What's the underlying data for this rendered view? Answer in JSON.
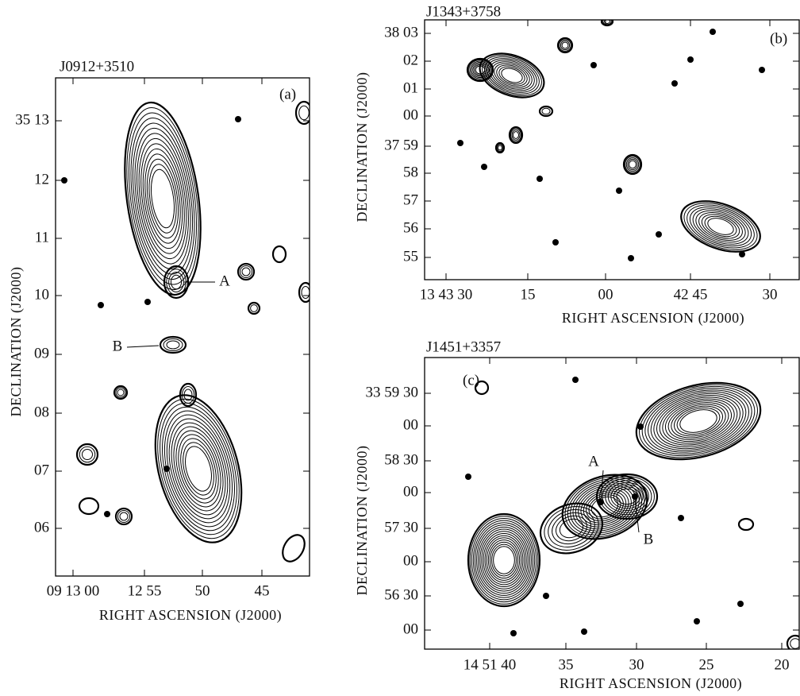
{
  "panels": [
    {
      "title": "J0912+3510",
      "label": "(a)",
      "y_tick_labels": [
        "35 13",
        "12",
        "11",
        "10",
        "09",
        "08",
        "07",
        "06"
      ],
      "x_tick_labels": [
        "09 13 00",
        "12 55",
        "50",
        "45"
      ],
      "x_axis_label": "RIGHT ASCENSION (J2000)",
      "y_axis_label": "DECLINATION (J2000)",
      "annotations": [
        "A",
        "B"
      ]
    },
    {
      "title": "J1343+3758",
      "label": "(b)",
      "y_tick_labels": [
        "38 03",
        "02",
        "01",
        "00",
        "37 59",
        "58",
        "57",
        "56",
        "55"
      ],
      "x_tick_labels": [
        "13 43 30",
        "15",
        "00",
        "42 45",
        "30"
      ],
      "x_axis_label": "RIGHT ASCENSION (J2000)",
      "y_axis_label": "DECLINATION (J2000)",
      "annotations": []
    },
    {
      "title": "J1451+3357",
      "label": "(c)",
      "y_tick_labels": [
        "33 59 30",
        "00",
        "58 30",
        "00",
        "57 30",
        "00",
        "56 30",
        "00"
      ],
      "x_tick_labels": [
        "14 51 40",
        "35",
        "30",
        "25",
        "20"
      ],
      "x_axis_label": "RIGHT ASCENSION (J2000)",
      "y_axis_label": "DECLINATION (J2000)",
      "annotations": [
        "A",
        "B"
      ]
    }
  ]
}
